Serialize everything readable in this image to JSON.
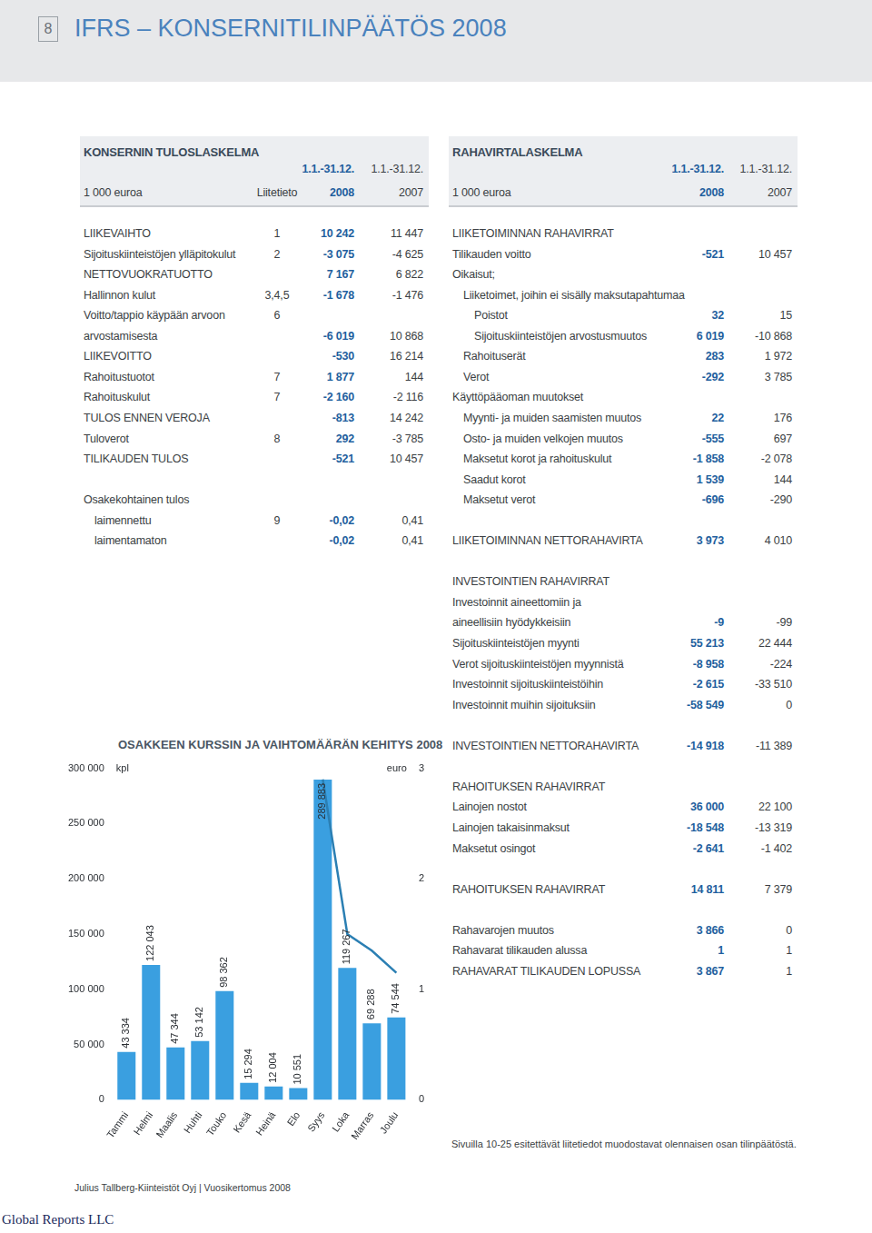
{
  "header": {
    "page": "8",
    "title": "IFRS – KONSERNITILINPÄÄTÖS 2008"
  },
  "income_statement": {
    "title": "KONSERNIN TULOSLASKELMA",
    "unit": "1 000 euroa",
    "note_header": "Liitetieto",
    "columns": [
      {
        "period": "1.1.-31.12.",
        "year": "2008"
      },
      {
        "period": "1.1.-31.12.",
        "year": "2007"
      }
    ],
    "sections": [
      [
        {
          "label": "LIIKEVAIHTO",
          "note": "1",
          "v2008": "10 242",
          "v2007": "11 447"
        },
        {
          "label": "Sijoituskiinteistöjen ylläpitokulut",
          "note": "2",
          "v2008": "-3 075",
          "v2007": "-4 625"
        },
        {
          "label": "NETTOVUOKRATUOTTO",
          "v2008": "7 167",
          "v2007": "6 822"
        },
        {
          "label": "Hallinnon kulut",
          "note": "3,4,5",
          "v2008": "-1 678",
          "v2007": "-1 476"
        },
        {
          "label": [
            "Voitto/tappio käypään arvoon",
            "arvostamisesta"
          ],
          "note": "6",
          "v2008": "-6 019",
          "v2007": "10 868"
        },
        {
          "label": "LIIKEVOITTO",
          "v2008": "-530",
          "v2007": "16 214"
        },
        {
          "label": "Rahoitustuotot",
          "note": "7",
          "v2008": "1 877",
          "v2007": "144"
        },
        {
          "label": "Rahoituskulut",
          "note": "7",
          "v2008": "-2 160",
          "v2007": "-2 116"
        },
        {
          "label": "TULOS ENNEN VEROJA",
          "v2008": "-813",
          "v2007": "14 242"
        },
        {
          "label": "Tuloverot",
          "note": "8",
          "v2008": "292",
          "v2007": "-3 785"
        },
        {
          "label": "TILIKAUDEN TULOS",
          "v2008": "-521",
          "v2007": "10 457"
        }
      ],
      [
        {
          "label": "Osakekohtainen tulos",
          "children": [
            {
              "label": "laimennettu",
              "note": "9",
              "v2008": "-0,02",
              "v2007": "0,41"
            },
            {
              "label": "laimentamaton",
              "v2008": "-0,02",
              "v2007": "0,41"
            }
          ]
        }
      ]
    ]
  },
  "cash_flow": {
    "title": "RAHAVIRTALASKELMA",
    "unit": "1 000 euroa",
    "columns": [
      {
        "period": "1.1.-31.12.",
        "year": "2008"
      },
      {
        "period": "1.1.-31.12.",
        "year": "2007"
      }
    ],
    "sections": [
      [
        {
          "label": "LIIKETOIMINNAN RAHAVIRRAT"
        },
        {
          "label": "Tilikauden voitto",
          "v2008": "-521",
          "v2007": "10 457"
        },
        {
          "label": "Oikaisut;",
          "children": [
            {
              "label": "Liiketoimet, joihin ei sisälly maksutapahtumaa",
              "children": [
                {
                  "label": "Poistot",
                  "v2008": "32",
                  "v2007": "15"
                },
                {
                  "label": "Sijoituskiinteistöjen arvostusmuutos",
                  "v2008": "6 019",
                  "v2007": "-10 868"
                }
              ]
            },
            {
              "label": "Rahoituserät",
              "v2008": "283",
              "v2007": "1 972"
            },
            {
              "label": "Verot",
              "v2008": "-292",
              "v2007": "3 785"
            }
          ]
        },
        {
          "label": "Käyttöpääoman muutokset",
          "children": [
            {
              "label": "Myynti- ja muiden saamisten muutos",
              "v2008": "22",
              "v2007": "176"
            },
            {
              "label": "Osto- ja muiden velkojen muutos",
              "v2008": "-555",
              "v2007": "697"
            },
            {
              "label": "Maksetut korot ja rahoituskulut",
              "v2008": "-1 858",
              "v2007": "-2 078"
            },
            {
              "label": "Saadut korot",
              "v2008": "1 539",
              "v2007": "144"
            },
            {
              "label": "Maksetut verot",
              "v2008": "-696",
              "v2007": "-290"
            }
          ]
        }
      ],
      [
        {
          "label": "LIIKETOIMINNAN NETTORAHAVIRTA",
          "v2008": "3 973",
          "v2007": "4 010"
        }
      ],
      [
        {
          "label": "INVESTOINTIEN RAHAVIRRAT"
        },
        {
          "label": [
            "Investoinnit aineettomiin ja",
            "aineellisiin hyödykkeisiin"
          ],
          "v2008": "-9",
          "v2007": "-99"
        },
        {
          "label": "Sijoituskiinteistöjen myynti",
          "v2008": "55 213",
          "v2007": "22 444"
        },
        {
          "label": "Verot sijoituskiinteistöjen myynnistä",
          "v2008": "-8 958",
          "v2007": "-224"
        },
        {
          "label": "Investoinnit sijoituskiinteistöihin",
          "v2008": "-2 615",
          "v2007": "-33 510"
        },
        {
          "label": "Investoinnit muihin sijoituksiin",
          "v2008": "-58 549",
          "v2007": "0"
        }
      ],
      [
        {
          "label": "INVESTOINTIEN NETTORAHAVIRTA",
          "v2008": "-14 918",
          "v2007": "-11 389"
        }
      ],
      [
        {
          "label": "RAHOITUKSEN RAHAVIRRAT"
        },
        {
          "label": "Lainojen nostot",
          "v2008": "36 000",
          "v2007": "22 100"
        },
        {
          "label": "Lainojen takaisinmaksut",
          "v2008": "-18 548",
          "v2007": "-13 319"
        },
        {
          "label": "Maksetut osingot",
          "v2008": "-2 641",
          "v2007": "-1 402"
        }
      ],
      [
        {
          "label": "RAHOITUKSEN RAHAVIRRAT",
          "v2008": "14 811",
          "v2007": "7 379"
        }
      ],
      [
        {
          "label": "Rahavarojen muutos",
          "v2008": "3 866",
          "v2007": "0"
        },
        {
          "label": "Rahavarat tilikauden alussa",
          "v2008": "1",
          "v2007": "1"
        },
        {
          "label": "RAHAVARAT TILIKAUDEN LOPUSSA",
          "v2008": "3 867",
          "v2007": "1"
        }
      ]
    ]
  },
  "chart_data": {
    "type": "bar",
    "title": "OSAKKEEN KURSSIN JA VAIHTOMÄÄRÄN KEHITYS 2008",
    "categories": [
      "Tammi",
      "Helmi",
      "Maalis",
      "Huhti",
      "Touko",
      "Kesä",
      "Heinä",
      "Elo",
      "Syys",
      "Loka",
      "Marras",
      "Joulu"
    ],
    "series": [
      {
        "type": "bar",
        "color": "#3a9fe0",
        "data_labels": true,
        "values": [
          43334,
          122043,
          47344,
          53142,
          98362,
          15294,
          12004,
          10551,
          289883,
          119267,
          69288,
          74544
        ],
        "value_labels": [
          "43 334",
          "122 043",
          "47 344",
          "53 142",
          "98 362",
          "15 294",
          "12 004",
          "10 551",
          "289 883",
          "119 267",
          "69 288",
          "74 544"
        ]
      },
      {
        "type": "line",
        "axis": "y2",
        "color": "#2b7fb3",
        "marker": "none",
        "values": [
          null,
          null,
          null,
          null,
          null,
          null,
          null,
          null,
          2.9,
          1.5,
          1.35,
          1.15
        ]
      }
    ],
    "ylabel": "kpl",
    "y2label": "euro",
    "ylim": [
      0,
      300000
    ],
    "yticks": [
      0,
      {
        "value": 50000,
        "label": "50 000"
      },
      {
        "value": 100000,
        "label": "100 000"
      },
      {
        "value": 150000,
        "label": "150 000"
      },
      {
        "value": 200000,
        "label": "200 000"
      },
      {
        "value": 250000,
        "label": "250 000"
      },
      {
        "value": 300000,
        "label": "300 000"
      }
    ],
    "y2lim": [
      0,
      3
    ],
    "y2ticks": [
      0,
      1,
      2,
      3
    ],
    "grid": false
  },
  "footnote": "Sivuilla 10-25 esitettävät liitetiedot muodostavat olennaisen osan tilinpäätöstä.",
  "footer": "Julius Tallberg-Kiinteistöt Oyj | Vuosikertomus 2008",
  "watermark": "Global Reports LLC"
}
